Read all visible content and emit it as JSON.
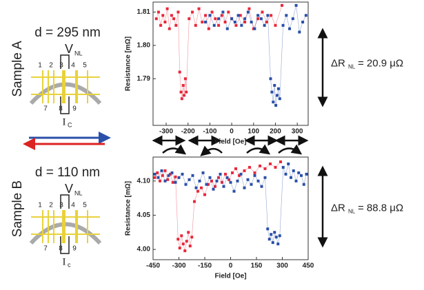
{
  "chart_data": [
    {
      "type": "scatter",
      "sample": "Sample A",
      "thickness": "d = 295 nm",
      "delta_symbol": "ΔR",
      "delta_sub": "NL",
      "delta_value": "= 20.9 μΩ",
      "device": {
        "voltage": "V",
        "voltage_sub": "NL",
        "current": "I",
        "current_sub": "C",
        "contacts": [
          "1",
          "2",
          "3",
          "4",
          "5",
          "7",
          "8",
          "9"
        ]
      },
      "y_label": "Resistance [mΩ]",
      "x_label": "Field [Oe]",
      "xlim": [
        -360,
        350
      ],
      "xticks": [
        -300,
        -200,
        -100,
        0,
        100,
        200,
        300
      ],
      "ylim": [
        1.776,
        1.813
      ],
      "yticks": [
        1.79,
        {
          "value": 1.8,
          "label": "1.80"
        },
        1.81
      ],
      "series": [
        {
          "color": "#e8283a",
          "x": [
            -345,
            -335,
            -325,
            -315,
            -305,
            -295,
            -285,
            -275,
            -265,
            -255,
            -245,
            -238,
            -232,
            -228,
            -222,
            -218,
            -212,
            -208,
            -195,
            -180,
            -165,
            -150,
            -135,
            -120,
            -105,
            -90,
            -75,
            -60,
            -45,
            -30,
            -15,
            0,
            20,
            40,
            60,
            80,
            100,
            120,
            140,
            160,
            180,
            200,
            230
          ],
          "values": [
            1.808,
            1.81,
            1.806,
            1.809,
            1.807,
            1.811,
            1.805,
            1.809,
            1.808,
            1.806,
            1.81,
            1.792,
            1.786,
            1.784,
            1.788,
            1.785,
            1.79,
            1.786,
            1.808,
            1.81,
            1.806,
            1.811,
            1.807,
            1.809,
            1.805,
            1.81,
            1.808,
            1.806,
            1.809,
            1.807,
            1.81,
            1.808,
            1.806,
            1.809,
            1.807,
            1.811,
            1.805,
            1.808,
            1.81,
            1.807,
            1.809,
            1.806,
            1.812
          ]
        },
        {
          "color": "#2a4fa8",
          "x": [
            -120,
            -100,
            -80,
            -60,
            -40,
            -20,
            0,
            15,
            30,
            45,
            60,
            75,
            90,
            105,
            120,
            135,
            150,
            165,
            178,
            184,
            190,
            196,
            202,
            208,
            214,
            220,
            235,
            250,
            265,
            280,
            295,
            310,
            325,
            340
          ],
          "values": [
            1.807,
            1.809,
            1.806,
            1.808,
            1.81,
            1.805,
            1.808,
            1.807,
            1.809,
            1.806,
            1.808,
            1.81,
            1.807,
            1.805,
            1.809,
            1.808,
            1.806,
            1.809,
            1.79,
            1.786,
            1.783,
            1.788,
            1.782,
            1.785,
            1.787,
            1.784,
            1.806,
            1.809,
            1.805,
            1.808,
            1.812,
            1.804,
            1.807,
            1.809
          ]
        }
      ]
    },
    {
      "type": "scatter",
      "sample": "Sample B",
      "thickness": "d = 110 nm",
      "delta_symbol": "ΔR",
      "delta_sub": "NL",
      "delta_value": "= 88.8 μΩ",
      "device": {
        "voltage": "V",
        "voltage_sub": "NL",
        "current": "I",
        "current_sub": "c",
        "contacts": [
          "1",
          "2",
          "3",
          "4",
          "5",
          "7",
          "8",
          "9"
        ]
      },
      "y_label": "Resistance [mΩ]",
      "x_label": "Field [Oe]",
      "xlim": [
        -450,
        450
      ],
      "xticks": [
        -450,
        -300,
        -150,
        0,
        150,
        300,
        450
      ],
      "ylim": [
        3.985,
        4.135
      ],
      "yticks": [
        {
          "value": 4,
          "label": "4.00"
        },
        4.05,
        {
          "value": 4.1,
          "label": "4.10"
        }
      ],
      "series": [
        {
          "color": "#e8283a",
          "x": [
            -440,
            -425,
            -410,
            -395,
            -380,
            -365,
            -350,
            -335,
            -320,
            -305,
            -295,
            -285,
            -275,
            -265,
            -255,
            -245,
            -235,
            -225,
            -210,
            -190,
            -170,
            -150,
            -130,
            -110,
            -90,
            -70,
            -50,
            -30,
            -10,
            10,
            30,
            50,
            80,
            110,
            140,
            170,
            200,
            230,
            260,
            290
          ],
          "values": [
            4.105,
            4.112,
            4.1,
            4.108,
            4.115,
            4.102,
            4.11,
            4.098,
            4.106,
            4.015,
            4.002,
            4.02,
            4.008,
            3.998,
            4.012,
            4.025,
            4.005,
            4.018,
            4.07,
            4.085,
            4.09,
            4.08,
            4.095,
            4.1,
            4.092,
            4.105,
            4.098,
            4.11,
            4.102,
            4.112,
            4.118,
            4.108,
            4.115,
            4.12,
            4.112,
            4.122,
            4.118,
            4.125,
            4.12,
            4.128
          ]
        },
        {
          "color": "#2a4fa8",
          "x": [
            -440,
            -420,
            -400,
            -380,
            -360,
            -340,
            -320,
            -300,
            -280,
            -260,
            -240,
            -220,
            -200,
            -180,
            -160,
            -140,
            -120,
            -100,
            -80,
            -60,
            -40,
            -20,
            0,
            20,
            40,
            60,
            80,
            100,
            120,
            140,
            160,
            180,
            200,
            215,
            225,
            235,
            245,
            255,
            265,
            275,
            285,
            305,
            320,
            335,
            350,
            365,
            380,
            395,
            410,
            425,
            440
          ],
          "values": [
            4.11,
            4.105,
            4.115,
            4.1,
            4.108,
            4.112,
            4.098,
            4.105,
            4.11,
            4.095,
            4.102,
            4.108,
            4.09,
            4.1,
            4.112,
            4.095,
            4.105,
            4.088,
            4.1,
            4.11,
            4.092,
            4.105,
            4.098,
            4.085,
            4.1,
            4.11,
            4.09,
            4.102,
            4.095,
            4.108,
            4.1,
            4.092,
            4.105,
            4.03,
            4.015,
            4.022,
            4.01,
            4.025,
            4.018,
            4.008,
            4.02,
            4.12,
            4.11,
            4.125,
            4.105,
            4.115,
            4.1,
            4.112,
            4.108,
            4.095,
            4.11
          ]
        }
      ]
    }
  ]
}
